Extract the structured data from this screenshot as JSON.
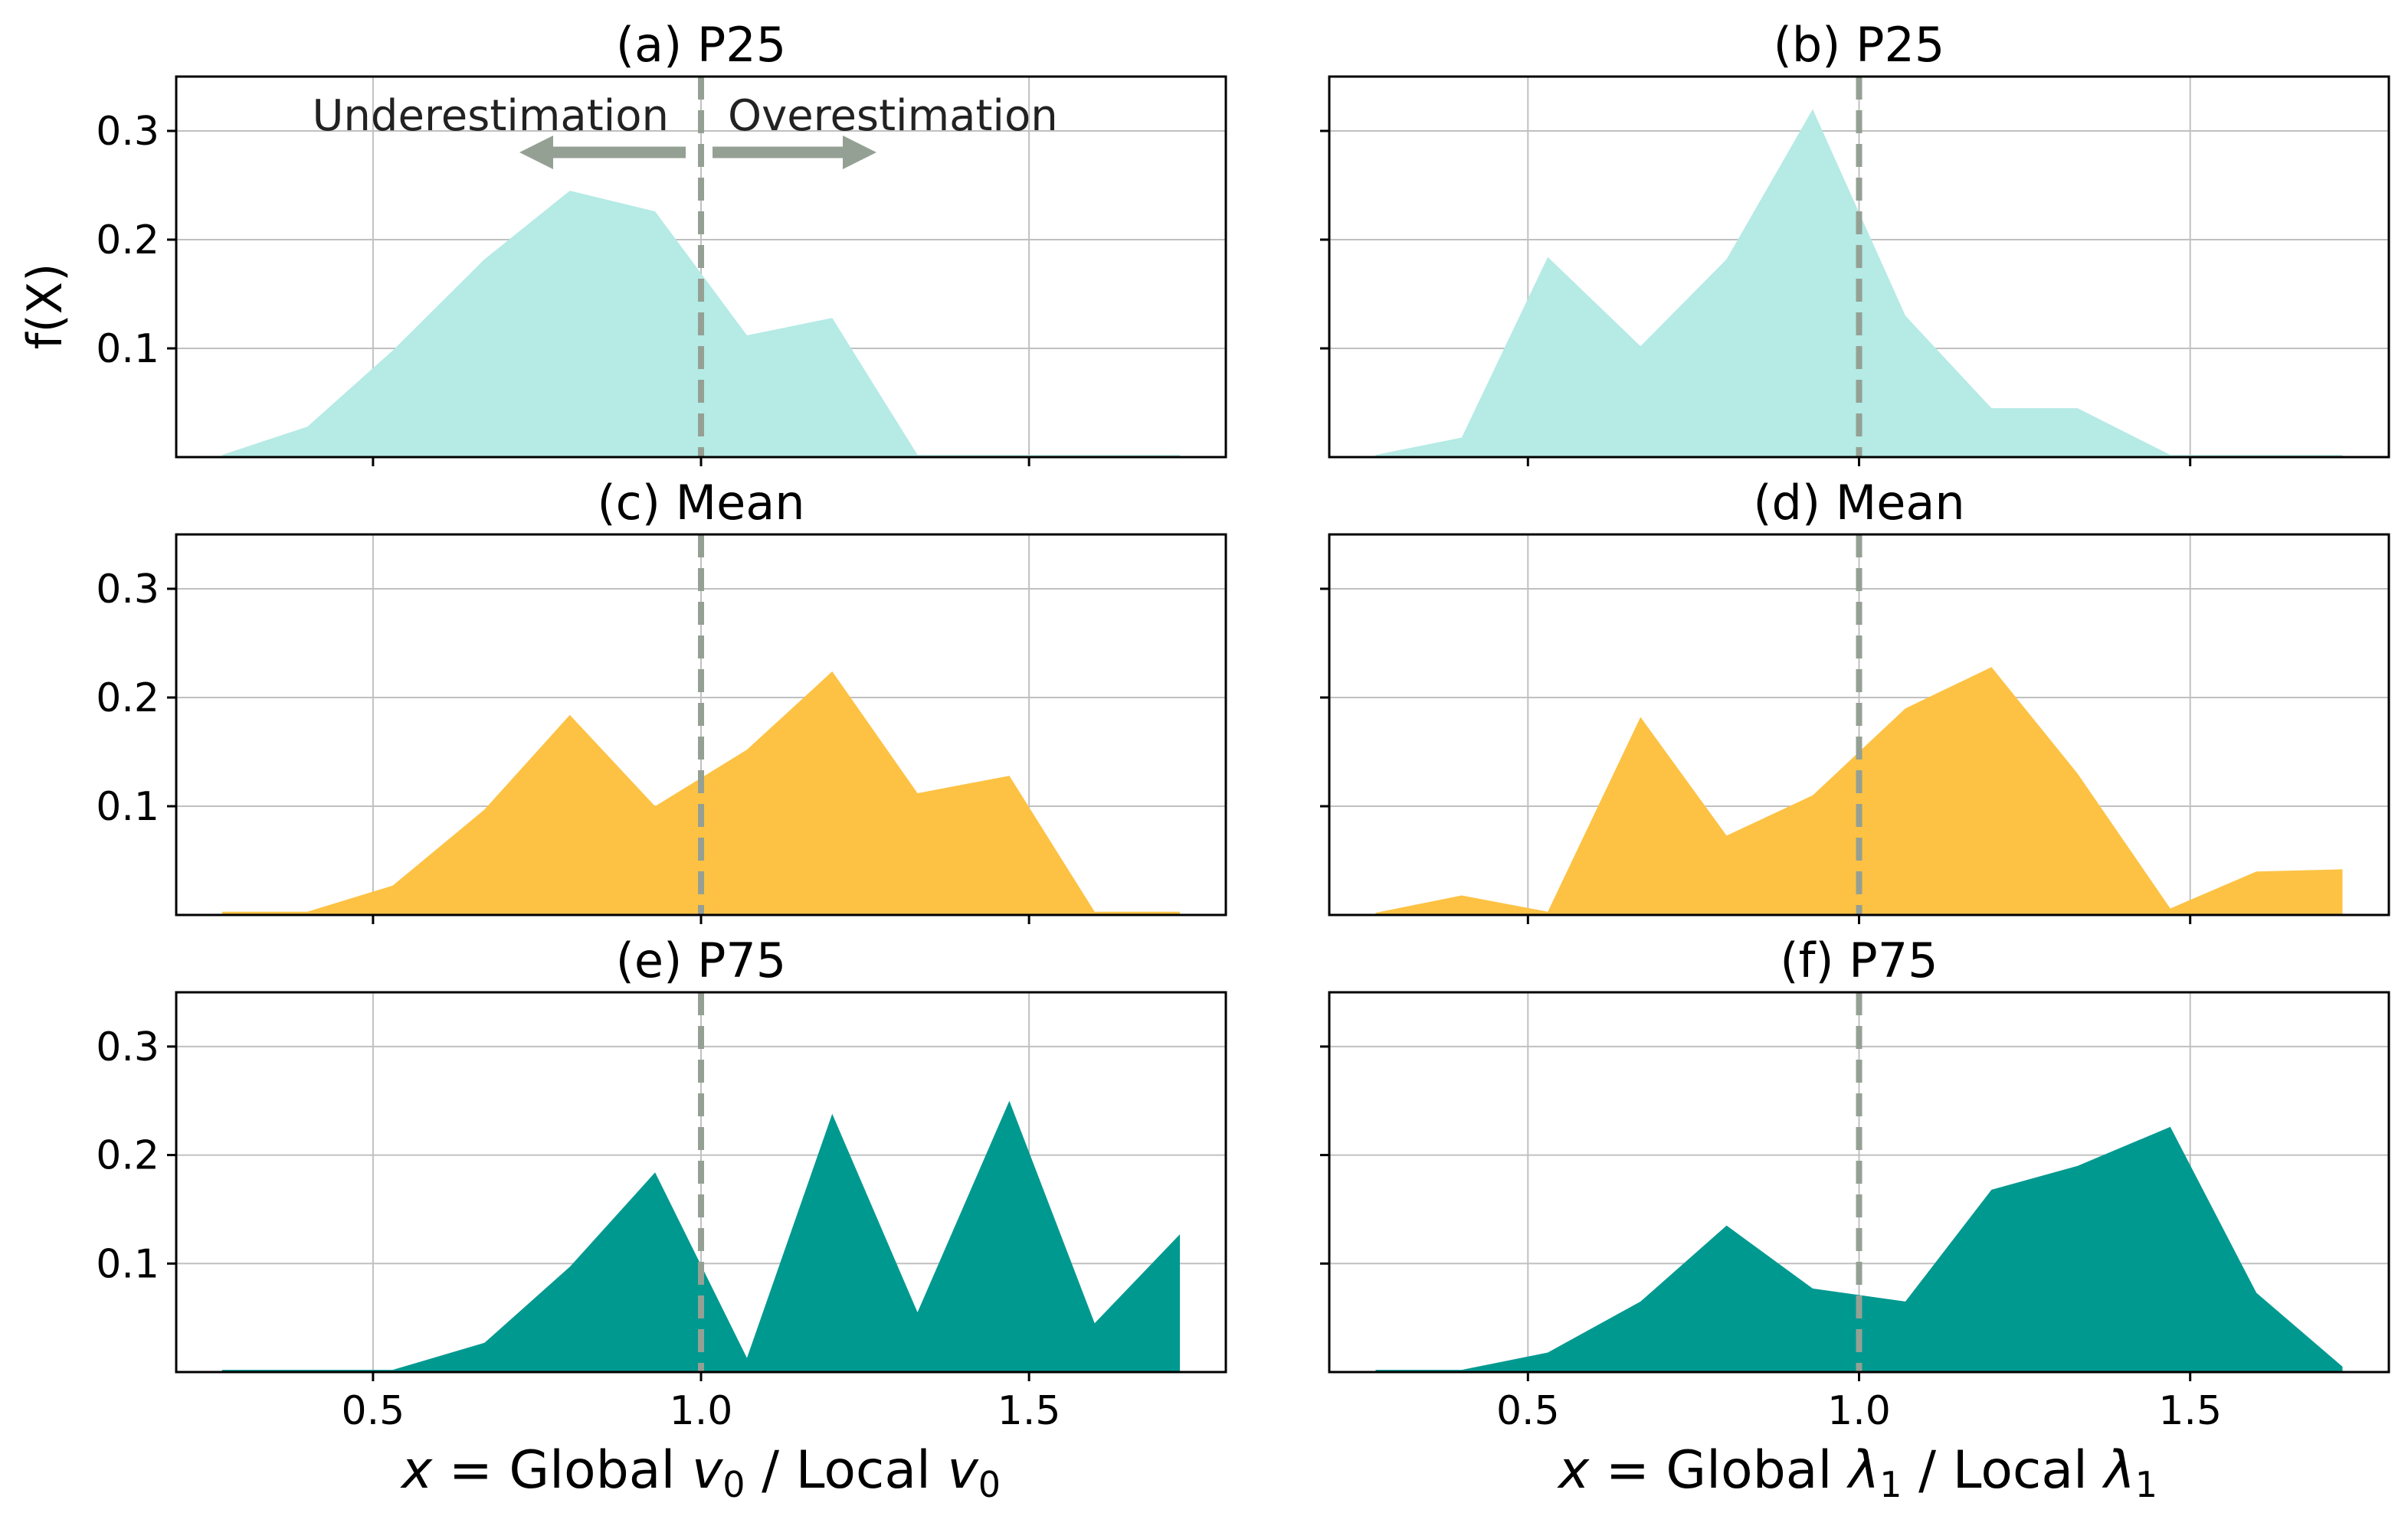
{
  "figure": {
    "ylabel": "f(X)",
    "left_xlabel": {
      "x": "x",
      "eq": " = Global ",
      "v": "v",
      "sub": "0",
      "mid": " / Local ",
      "v2": "v",
      "sub2": "0"
    },
    "right_xlabel": {
      "x": "x",
      "eq": " = Global ",
      "l": "λ",
      "sub": "1",
      "mid": " / Local ",
      "l2": "λ",
      "sub2": "1"
    },
    "annotations": {
      "under": "Underestimation",
      "over": "Overestimation"
    }
  },
  "colors": {
    "p25": "#b5eae5",
    "mean": "#fdc244",
    "p75": "#009990",
    "refline": "#95a094",
    "arrow": "#95a094",
    "grid": "#c0c0c0"
  },
  "chart_data": [
    {
      "type": "area",
      "title": "(a) P25",
      "color": "p25",
      "x": [
        0.27,
        0.4,
        0.53,
        0.67,
        0.8,
        0.93,
        1.07,
        1.2,
        1.33,
        1.47,
        1.6,
        1.73
      ],
      "values": [
        0.002,
        0.028,
        0.098,
        0.182,
        0.245,
        0.226,
        0.112,
        0.128,
        0.002,
        0.002,
        0.002,
        0.002
      ],
      "xlim": [
        0.2,
        1.8
      ],
      "ylim": [
        0,
        0.35
      ],
      "yticks": [
        0.1,
        0.2,
        0.3
      ],
      "xticks": [
        0.5,
        1.0,
        1.5
      ],
      "grid": true,
      "refline_x": 1.0
    },
    {
      "type": "area",
      "title": "(b) P25",
      "color": "p25",
      "x": [
        0.27,
        0.4,
        0.53,
        0.67,
        0.8,
        0.93,
        1.07,
        1.2,
        1.33,
        1.47,
        1.6,
        1.73
      ],
      "values": [
        0.002,
        0.018,
        0.184,
        0.102,
        0.182,
        0.32,
        0.13,
        0.045,
        0.045,
        0.002,
        0.002,
        0.002
      ],
      "xlim": [
        0.2,
        1.8
      ],
      "ylim": [
        0,
        0.35
      ],
      "yticks": [
        0.1,
        0.2,
        0.3
      ],
      "xticks": [
        0.5,
        1.0,
        1.5
      ],
      "grid": true,
      "refline_x": 1.0
    },
    {
      "type": "area",
      "title": "(c) Mean",
      "color": "mean",
      "x": [
        0.27,
        0.4,
        0.53,
        0.67,
        0.8,
        0.93,
        1.07,
        1.2,
        1.33,
        1.47,
        1.6,
        1.73
      ],
      "values": [
        0.003,
        0.003,
        0.027,
        0.097,
        0.184,
        0.1,
        0.152,
        0.224,
        0.112,
        0.128,
        0.003,
        0.003
      ],
      "xlim": [
        0.2,
        1.8
      ],
      "ylim": [
        0,
        0.35
      ],
      "yticks": [
        0.1,
        0.2,
        0.3
      ],
      "xticks": [
        0.5,
        1.0,
        1.5
      ],
      "grid": true,
      "refline_x": 1.0
    },
    {
      "type": "area",
      "title": "(d) Mean",
      "color": "mean",
      "x": [
        0.27,
        0.4,
        0.53,
        0.67,
        0.8,
        0.93,
        1.07,
        1.2,
        1.33,
        1.47,
        1.6,
        1.73
      ],
      "values": [
        0.002,
        0.018,
        0.003,
        0.182,
        0.073,
        0.11,
        0.19,
        0.228,
        0.13,
        0.006,
        0.04,
        0.042
      ],
      "xlim": [
        0.2,
        1.8
      ],
      "ylim": [
        0,
        0.35
      ],
      "yticks": [
        0.1,
        0.2,
        0.3
      ],
      "xticks": [
        0.5,
        1.0,
        1.5
      ],
      "grid": true,
      "refline_x": 1.0
    },
    {
      "type": "area",
      "title": "(e) P75",
      "color": "p75",
      "x": [
        0.27,
        0.4,
        0.53,
        0.67,
        0.8,
        0.93,
        1.07,
        1.2,
        1.33,
        1.47,
        1.6,
        1.73
      ],
      "values": [
        0.002,
        0.002,
        0.002,
        0.027,
        0.097,
        0.184,
        0.013,
        0.238,
        0.055,
        0.25,
        0.045,
        0.127
      ],
      "xlim": [
        0.2,
        1.8
      ],
      "ylim": [
        0,
        0.35
      ],
      "yticks": [
        0.1,
        0.2,
        0.3
      ],
      "xticks": [
        0.5,
        1.0,
        1.5
      ],
      "grid": true,
      "refline_x": 1.0
    },
    {
      "type": "area",
      "title": "(f) P75",
      "color": "p75",
      "x": [
        0.27,
        0.4,
        0.53,
        0.67,
        0.8,
        0.93,
        1.07,
        1.2,
        1.33,
        1.47,
        1.6,
        1.73
      ],
      "values": [
        0.002,
        0.002,
        0.018,
        0.065,
        0.135,
        0.077,
        0.065,
        0.168,
        0.19,
        0.226,
        0.073,
        0.005
      ],
      "xlim": [
        0.2,
        1.8
      ],
      "ylim": [
        0,
        0.35
      ],
      "yticks": [
        0.1,
        0.2,
        0.3
      ],
      "xticks": [
        0.5,
        1.0,
        1.5
      ],
      "grid": true,
      "refline_x": 1.0
    }
  ]
}
